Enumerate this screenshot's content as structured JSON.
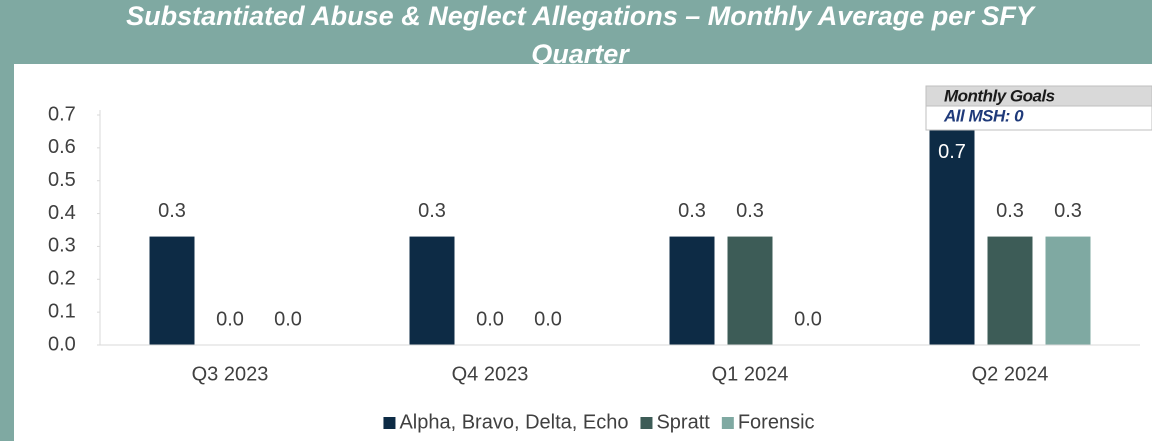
{
  "chart_data": {
    "type": "bar",
    "title": "Substantiated Abuse & Neglect Allegations – Monthly Average per SFY Quarter",
    "goals_title": "Monthly Goals",
    "goals_text": "All MSH: 0",
    "categories": [
      "Q3 2023",
      "Q4 2023",
      "Q1 2024",
      "Q2 2024"
    ],
    "series": [
      {
        "name": "Alpha, Bravo, Delta, Echo",
        "color": "#0d2b45",
        "values": [
          0.33,
          0.33,
          0.33,
          0.67
        ],
        "value_labels": [
          "0.3",
          "0.3",
          "0.3",
          "0.7"
        ]
      },
      {
        "name": "Spratt",
        "color": "#3d5c57",
        "values": [
          0,
          0,
          0.33,
          0.33
        ],
        "value_labels": [
          "0.0",
          "0.0",
          "0.3",
          "0.3"
        ]
      },
      {
        "name": "Forensic",
        "color": "#7fa9a2",
        "values": [
          0,
          0,
          0,
          0.33
        ],
        "value_labels": [
          "0.0",
          "0.0",
          "0.0",
          "0.3"
        ]
      }
    ],
    "ylim": [
      0,
      0.7
    ],
    "yticks": [
      {
        "value": 0,
        "label": "0.0"
      },
      0.1,
      0.2,
      0.3,
      0.4,
      0.5,
      0.6,
      0.7
    ],
    "legend": "bottom"
  }
}
